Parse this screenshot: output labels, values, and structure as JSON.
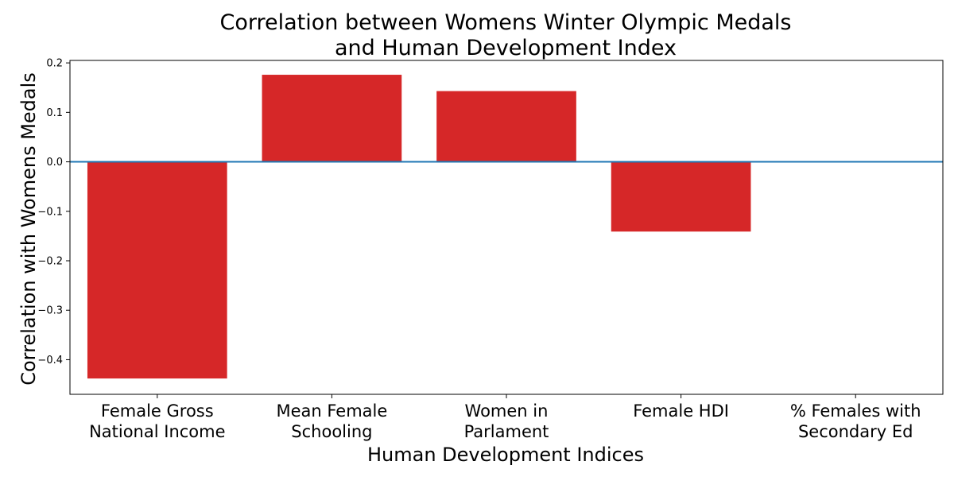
{
  "chart_data": {
    "type": "bar",
    "title": [
      "Correlation between Womens Winter Olympic Medals",
      "and Human Development Index"
    ],
    "xlabel": "Human Development Indices",
    "ylabel": "Correlation with Womens Medals",
    "categories": [
      [
        "Female Gross",
        "National Income"
      ],
      [
        "Mean Female",
        "Schooling"
      ],
      [
        "Women in",
        "Parlament"
      ],
      [
        "Female HDI"
      ],
      [
        "% Females with",
        "Secondary Ed"
      ]
    ],
    "values": [
      -0.438,
      0.176,
      0.143,
      -0.141,
      0.0
    ],
    "ylim": [
      -0.47,
      0.205
    ],
    "yticks": [
      0.2,
      0.1,
      0.0,
      -0.1,
      -0.2,
      -0.3,
      -0.4
    ],
    "ytick_labels": [
      "0.2",
      "0.1",
      "0.0",
      "−0.1",
      "−0.2",
      "−0.3",
      "−0.4"
    ],
    "zero_line": 0.0,
    "grid": false,
    "legend": "none",
    "colors": {
      "bar": "#d62728",
      "zero_line": "#1f77b4",
      "axes": "#000000"
    }
  }
}
